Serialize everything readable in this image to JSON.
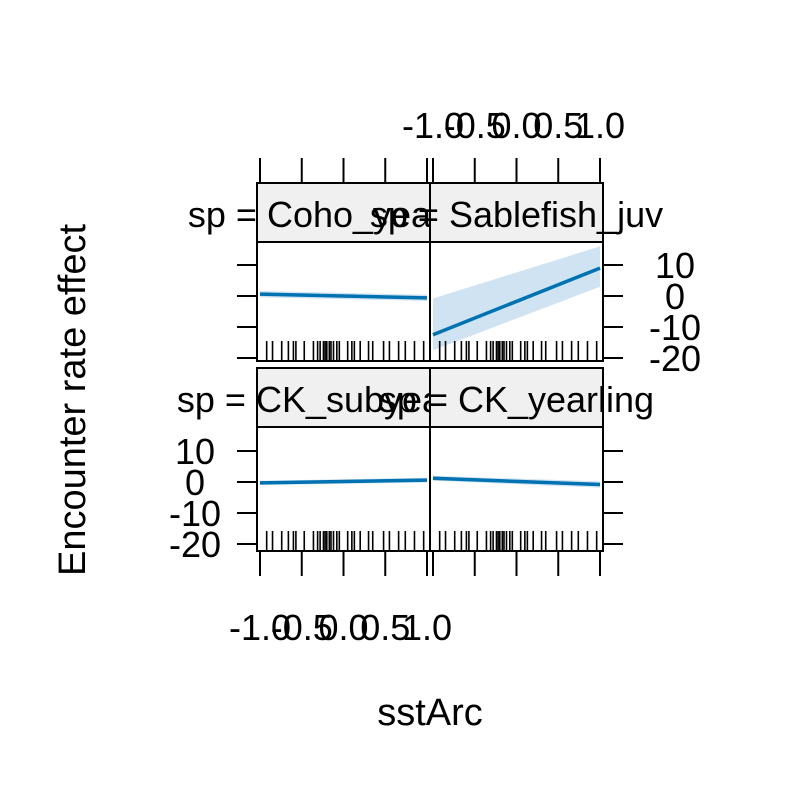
{
  "chart_data": {
    "type": "line",
    "xlabel": "sstArc",
    "ylabel": "Encounter rate effect",
    "xlim": [
      -1.0,
      1.0
    ],
    "ylim": [
      -20,
      15
    ],
    "x_tick_labels": [
      "-1.0",
      "-0.5",
      "0.0",
      "0.5",
      "1.0"
    ],
    "y_tick_labels": [
      "-20",
      "-10",
      "0",
      "10"
    ],
    "x_ticks": [
      -1.0,
      -0.5,
      0.0,
      0.5,
      1.0
    ],
    "y_ticks": [
      -20,
      -10,
      0,
      10
    ],
    "line_color": "#0072B2",
    "band_color": "#CFE3F2",
    "strip_color": "#F0F0F0",
    "rug_x": [
      -0.92,
      -0.85,
      -0.74,
      -0.66,
      -0.6,
      -0.57,
      -0.47,
      -0.36,
      -0.31,
      -0.28,
      -0.24,
      -0.22,
      -0.2,
      -0.17,
      -0.15,
      -0.12,
      -0.08,
      -0.05,
      0.05,
      0.1,
      0.13,
      0.2,
      0.3,
      0.35,
      0.48,
      0.55,
      0.66,
      0.74,
      0.85,
      0.96
    ],
    "panels": [
      {
        "strip": "sp = Coho_yearling",
        "x": [
          -1.0,
          1.0
        ],
        "fit": [
          0.6,
          -0.6
        ],
        "lower": [
          -0.4,
          -1.6
        ],
        "upper": [
          1.6,
          0.4
        ]
      },
      {
        "strip": "sp = Sablefish_juv",
        "x": [
          -1.0,
          1.0
        ],
        "fit": [
          -12.5,
          9.0
        ],
        "lower": [
          -17.5,
          3.0
        ],
        "upper": [
          -0.8,
          16.0
        ]
      },
      {
        "strip": "sp = CK_subyearling",
        "x": [
          -1.0,
          1.0
        ],
        "fit": [
          -0.3,
          0.6
        ],
        "lower": [
          -1.0,
          -0.2
        ],
        "upper": [
          0.4,
          1.4
        ]
      },
      {
        "strip": "sp = CK_yearling",
        "x": [
          -1.0,
          1.0
        ],
        "fit": [
          1.2,
          -0.8
        ],
        "lower": [
          0.4,
          -1.8
        ],
        "upper": [
          2.0,
          0.2
        ]
      }
    ]
  }
}
